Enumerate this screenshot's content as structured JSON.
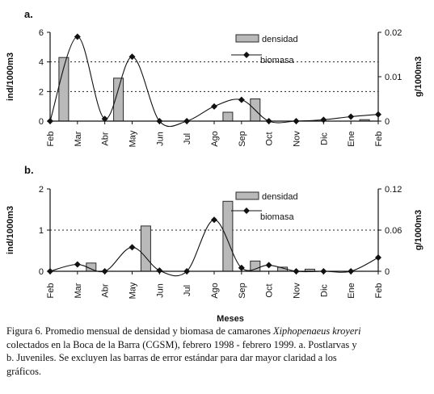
{
  "chart_data": [
    {
      "type": "bar",
      "panel_label": "a.",
      "categories": [
        "Feb",
        "Mar",
        "Abr",
        "May",
        "Jun",
        "Jul",
        "Ago",
        "Sep",
        "Oct",
        "Nov",
        "Dic",
        "Ene",
        "Feb"
      ],
      "series": [
        {
          "name": "densidad",
          "type": "bar",
          "axis": "left",
          "values": [
            4.3,
            0.0,
            2.9,
            0.0,
            0.0,
            0.0,
            0.6,
            1.5,
            0.0,
            0.0,
            0.0,
            0.1,
            0.5
          ]
        },
        {
          "name": "biomasa",
          "type": "line",
          "axis": "right",
          "values": [
            0.0,
            0.019,
            0.0005,
            0.0145,
            0.0,
            0.0,
            0.0033,
            0.0048,
            0.0,
            0.0,
            0.0003,
            0.001,
            0.0015
          ]
        }
      ],
      "ylabel": "ind/1000m3",
      "y2label": "g/1000m3",
      "ylim": [
        0,
        6
      ],
      "y2lim": [
        0,
        0.02
      ],
      "yticks": [
        "0",
        "2",
        "4",
        "6"
      ],
      "y2ticks": [
        "0",
        "0.01",
        "0.02"
      ],
      "grid": "dotted horizontal at 2 and 4",
      "legend": "top-right"
    },
    {
      "type": "bar",
      "panel_label": "b.",
      "categories": [
        "Feb",
        "Mar",
        "Abr",
        "May",
        "Jun",
        "Jul",
        "Ago",
        "Sep",
        "Oct",
        "Nov",
        "Dic",
        "Ene",
        "Feb"
      ],
      "series": [
        {
          "name": "densidad",
          "type": "bar",
          "axis": "left",
          "values": [
            0.0,
            0.2,
            0.0,
            1.1,
            0.0,
            0.0,
            1.7,
            0.25,
            0.1,
            0.05,
            0.0,
            0.0,
            0.5
          ]
        },
        {
          "name": "biomasa",
          "type": "line",
          "axis": "right",
          "values": [
            0.0,
            0.01,
            0.0,
            0.035,
            0.001,
            0.0,
            0.075,
            0.005,
            0.009,
            0.0,
            0.0,
            0.0,
            0.02
          ]
        }
      ],
      "xlabel": "Meses",
      "ylabel": "ind/1000m3",
      "y2label": "g/1000m3",
      "ylim": [
        0,
        2
      ],
      "y2lim": [
        0,
        0.12
      ],
      "yticks": [
        "0",
        "1",
        "2"
      ],
      "y2ticks": [
        "0",
        "0.06",
        "0.12"
      ],
      "grid": "dotted horizontal at 1",
      "legend": "top-right"
    }
  ],
  "caption": {
    "prefix": "Figura 6.  Promedio mensual de densidad y biomasa de camarones ",
    "species": "Xiphopenaeus kroyeri",
    "line2": "colectados en la Boca de la Barra (CGSM), febrero 1998 - febrero 1999.  a. Postlarvas y",
    "line3": "b. Juveniles.  Se excluyen las barras de error estándar para dar mayor  claridad a los",
    "line4": "gráficos."
  },
  "colors": {
    "bar_fill": "#b9b9b9",
    "bar_stroke": "#2a2a2a",
    "line": "#111111",
    "marker": "#111111"
  }
}
